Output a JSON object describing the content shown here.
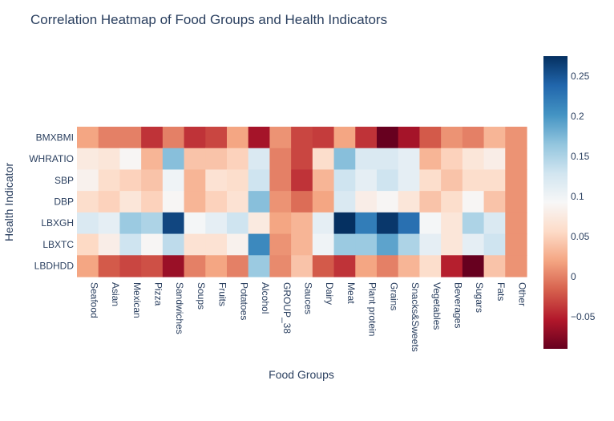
{
  "chart_data": {
    "type": "heatmap",
    "title": "Correlation Heatmap of Food Groups and Health Indicators",
    "xlabel": "Food Groups",
    "ylabel": "Health Indicator",
    "x": [
      "Seafood",
      "Asian",
      "Mexican",
      "Pizza",
      "Sandwiches",
      "Soups",
      "Fruits",
      "Potatoes",
      "Alcohol",
      "GROUP_38",
      "Sauces",
      "Dairy",
      "Meat",
      "Plant protein",
      "Grains",
      "Snacks&Sweets",
      "Vegetables",
      "Beverages",
      "Sugars",
      "Fats",
      "Other"
    ],
    "y": [
      "BMXBMI",
      "WHRATIO",
      "SBP",
      "DBP",
      "LBXGH",
      "LBXTC",
      "LBDHDD"
    ],
    "z": [
      [
        0.02,
        0.0,
        0.0,
        -0.04,
        0.0,
        -0.04,
        -0.03,
        0.02,
        -0.06,
        0.01,
        -0.03,
        -0.035,
        0.02,
        -0.04,
        -0.09,
        -0.06,
        -0.02,
        0.01,
        0.0,
        0.03,
        0.01
      ],
      [
        0.075,
        0.07,
        0.09,
        0.03,
        0.17,
        0.04,
        0.04,
        0.05,
        0.12,
        0.0,
        -0.03,
        0.06,
        0.17,
        0.12,
        0.12,
        0.11,
        0.03,
        0.05,
        0.07,
        0.08,
        0.01
      ],
      [
        0.085,
        0.06,
        0.05,
        0.04,
        0.1,
        0.03,
        0.065,
        0.06,
        0.13,
        0.0,
        -0.04,
        0.03,
        0.13,
        0.11,
        0.13,
        0.11,
        0.06,
        0.04,
        0.06,
        0.06,
        0.01
      ],
      [
        0.06,
        0.05,
        0.07,
        0.05,
        0.09,
        0.03,
        0.05,
        0.065,
        0.17,
        0.01,
        -0.01,
        0.02,
        0.12,
        0.08,
        0.09,
        0.07,
        0.04,
        0.06,
        0.09,
        0.04,
        0.01
      ],
      [
        0.12,
        0.11,
        0.16,
        0.15,
        0.26,
        0.095,
        0.11,
        0.13,
        0.075,
        0.02,
        0.03,
        0.11,
        0.28,
        0.22,
        0.27,
        0.23,
        0.095,
        0.07,
        0.15,
        0.12,
        0.01
      ],
      [
        0.055,
        0.08,
        0.13,
        0.09,
        0.14,
        0.065,
        0.065,
        0.085,
        0.21,
        0.01,
        0.03,
        0.1,
        0.16,
        0.16,
        0.19,
        0.15,
        0.11,
        0.07,
        0.11,
        0.13,
        0.01
      ],
      [
        0.02,
        -0.02,
        -0.03,
        -0.025,
        -0.065,
        0.0,
        0.02,
        0.0,
        0.16,
        0.005,
        0.04,
        -0.02,
        -0.04,
        0.02,
        0.0,
        0.03,
        0.06,
        -0.05,
        -0.09,
        0.04,
        0.01
      ]
    ],
    "zmin": -0.09,
    "zmax": 0.275,
    "colorscale": "RdBu",
    "colorbar_ticks": [
      0.25,
      0.2,
      0.15,
      0.1,
      0.05,
      0,
      -0.05
    ],
    "colorbar_tick_labels": [
      "0.25",
      "0.2",
      "0.15",
      "0.1",
      "0.05",
      "0",
      "−0.05"
    ],
    "grid": false
  }
}
